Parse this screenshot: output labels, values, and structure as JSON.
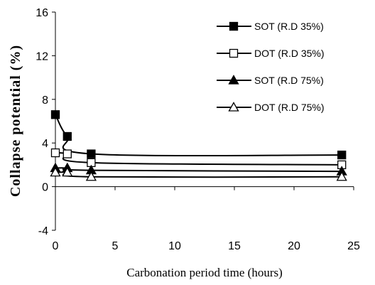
{
  "chart_data": {
    "type": "line",
    "xlabel": "Carbonation period time (hours)",
    "ylabel": "Collapse potential (%)",
    "xlim": [
      0,
      25
    ],
    "ylim": [
      -4,
      16
    ],
    "xticks": [
      0,
      5,
      10,
      15,
      20,
      25
    ],
    "yticks": [
      -4,
      0,
      4,
      8,
      12,
      16
    ],
    "grid": false,
    "legend_position": "top-right",
    "x": [
      0,
      1,
      3,
      24
    ],
    "series": [
      {
        "name": "SOT (R.D 35%)",
        "values": [
          6.6,
          4.6,
          3.0,
          2.9
        ],
        "marker": "square",
        "filled": true
      },
      {
        "name": "DOT (R.D 35%)",
        "values": [
          3.1,
          3.0,
          2.2,
          2.0
        ],
        "marker": "square",
        "filled": false
      },
      {
        "name": "SOT (R.D 75%)",
        "values": [
          1.7,
          1.7,
          1.5,
          1.4
        ],
        "marker": "triangle",
        "filled": true
      },
      {
        "name": "DOT (R.D 75%)",
        "values": [
          1.3,
          1.3,
          0.9,
          0.9
        ],
        "marker": "triangle",
        "filled": false
      }
    ]
  }
}
